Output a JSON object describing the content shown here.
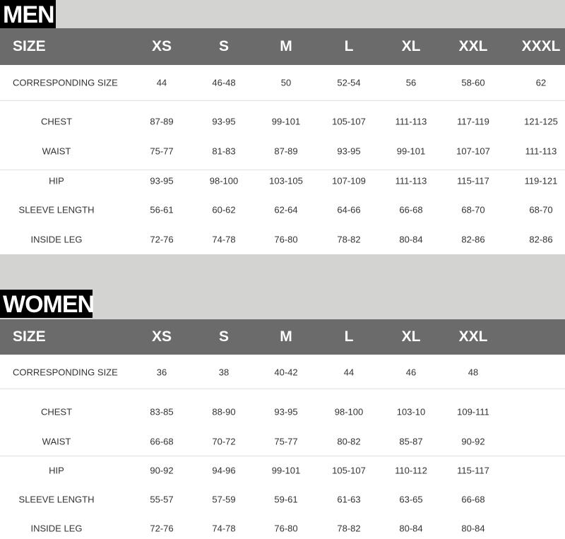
{
  "men": {
    "title": "MEN",
    "header": [
      "SIZE",
      "XS",
      "S",
      "M",
      "L",
      "XL",
      "XXL",
      "XXXL"
    ],
    "rows": [
      [
        "CORRESPONDING SIZE",
        "44",
        "46-48",
        "50",
        "52-54",
        "56",
        "58-60",
        "62"
      ],
      [
        "CHEST",
        "87-89",
        "93-95",
        "99-101",
        "105-107",
        "111-113",
        "117-119",
        "121-125"
      ],
      [
        "WAIST",
        "75-77",
        "81-83",
        "87-89",
        "93-95",
        "99-101",
        "107-107",
        "111-113"
      ],
      [
        "HIP",
        "93-95",
        "98-100",
        "103-105",
        "107-109",
        "111-113",
        "115-117",
        "119-121"
      ],
      [
        "SLEEVE LENGTH",
        "56-61",
        "60-62",
        "62-64",
        "64-66",
        "66-68",
        "68-70",
        "68-70"
      ],
      [
        "INSIDE LEG",
        "72-76",
        "74-78",
        "76-80",
        "78-82",
        "80-84",
        "82-86",
        "82-86"
      ]
    ]
  },
  "women": {
    "title": "WOMEN",
    "header": [
      "SIZE",
      "XS",
      "S",
      "M",
      "L",
      "XL",
      "XXL"
    ],
    "rows": [
      [
        "CORRESPONDING SIZE",
        "36",
        "38",
        "40-42",
        "44",
        "46",
        "48"
      ],
      [
        "CHEST",
        "83-85",
        "88-90",
        "93-95",
        "98-100",
        "103-10",
        "109-111"
      ],
      [
        "WAIST",
        "66-68",
        "70-72",
        "75-77",
        "80-82",
        "85-87",
        "90-92"
      ],
      [
        "HIP",
        "90-92",
        "94-96",
        "99-101",
        "105-107",
        "110-112",
        "115-117"
      ],
      [
        "SLEEVE LENGTH",
        "55-57",
        "57-59",
        "59-61",
        "61-63",
        "63-65",
        "66-68"
      ],
      [
        "INSIDE LEG",
        "72-76",
        "74-78",
        "76-80",
        "78-82",
        "80-84",
        "80-84"
      ]
    ]
  }
}
